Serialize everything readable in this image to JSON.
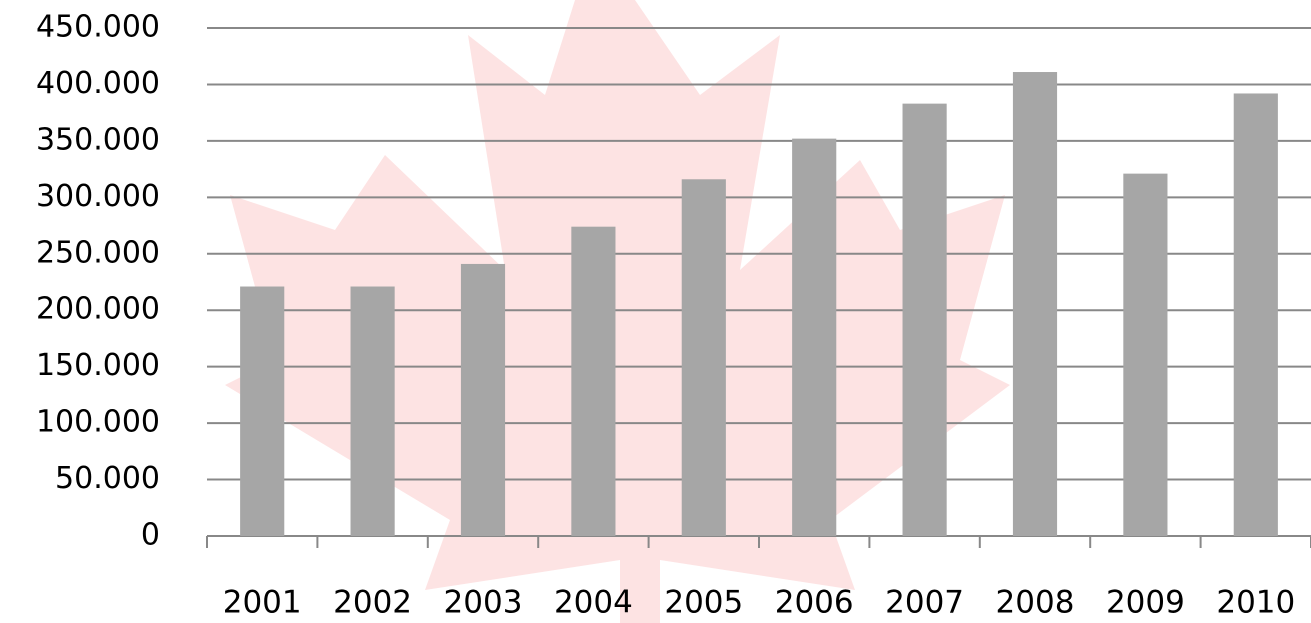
{
  "chart_data": {
    "type": "bar",
    "categories": [
      "2001",
      "2002",
      "2003",
      "2004",
      "2005",
      "2006",
      "2007",
      "2008",
      "2009",
      "2010"
    ],
    "values": [
      221000,
      221000,
      241000,
      274000,
      316000,
      352000,
      383000,
      411000,
      321000,
      392000
    ],
    "color": "#a6a6a6",
    "ylim": [
      0,
      450000
    ],
    "yticks": [
      0,
      {
        "value": 50000,
        "label": "50.000"
      },
      {
        "value": 100000,
        "label": "100.000"
      },
      {
        "value": 150000,
        "label": "150.000"
      },
      {
        "value": 200000,
        "label": "200.000"
      },
      {
        "value": 250000,
        "label": "250.000"
      },
      {
        "value": 300000,
        "label": "300.000"
      },
      {
        "value": 350000,
        "label": "350.000"
      },
      {
        "value": 400000,
        "label": "400.000"
      },
      {
        "value": 450000,
        "label": "450.000"
      }
    ],
    "grid": true
  }
}
